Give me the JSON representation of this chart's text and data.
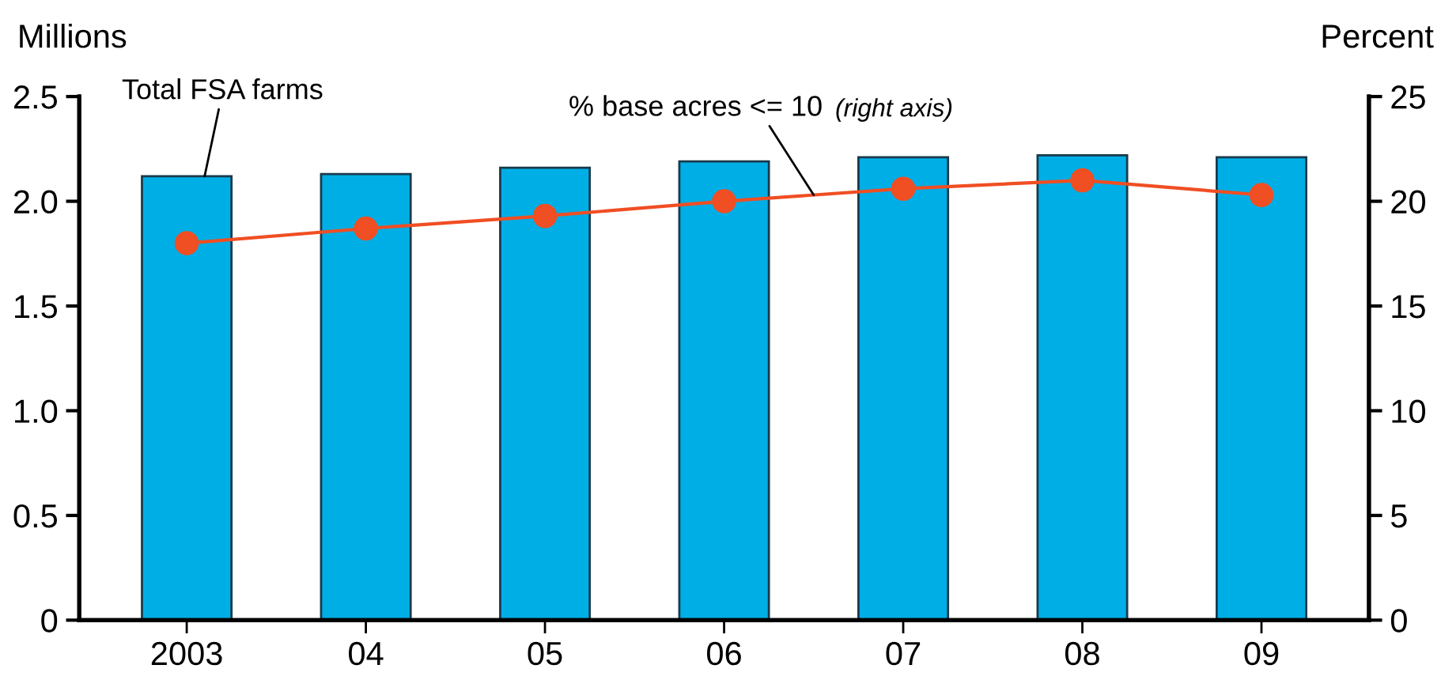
{
  "chart_data": {
    "type": "bar",
    "ylabel": "Millions",
    "y2label": "Percent",
    "categories": [
      "2003",
      "04",
      "05",
      "06",
      "07",
      "08",
      "09"
    ],
    "series": [
      {
        "name": "Total FSA farms",
        "color": "#00aee6",
        "values": [
          2.12,
          2.13,
          2.16,
          2.19,
          2.21,
          2.22,
          2.21
        ]
      },
      {
        "name": "% base acres <= 10",
        "type": "line",
        "axis": "y2",
        "color": "#f04e23",
        "marker": "circle",
        "values": [
          18.0,
          18.7,
          19.3,
          20.0,
          20.6,
          21.0,
          20.3
        ]
      }
    ],
    "annotations": [
      "(right axis)"
    ],
    "ylim": [
      0,
      2.5
    ],
    "yticks": [
      0,
      0.5,
      {
        "value": 1,
        "label": "1.0"
      },
      1.5,
      {
        "value": 2,
        "label": "2.0"
      },
      2.5
    ],
    "y2lim": [
      0,
      25
    ],
    "y2ticks": [
      0,
      5,
      10,
      15,
      20,
      25
    ],
    "grid": false,
    "legend": false
  }
}
